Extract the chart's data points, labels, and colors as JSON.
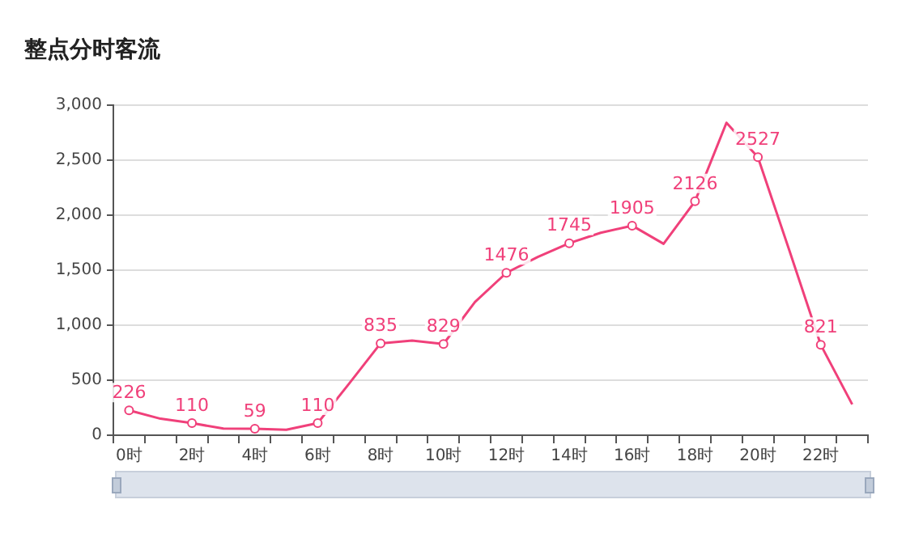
{
  "chart_data": {
    "type": "line",
    "title": "整点分时客流",
    "categories": [
      "0时",
      null,
      "2时",
      null,
      "4时",
      null,
      "6时",
      null,
      "8时",
      null,
      "10时",
      null,
      "12时",
      null,
      "14时",
      null,
      "16时",
      null,
      "18时",
      null,
      "20时",
      null,
      "22时",
      null
    ],
    "series": [
      {
        "color": "#f0407a",
        "values": [
          226,
          150,
          110,
          60,
          59,
          50,
          110,
          470,
          835,
          860,
          829,
          1210,
          1476,
          1620,
          1745,
          1840,
          1905,
          1740,
          2126,
          2840,
          2527,
          1680,
          821,
          280
        ],
        "value_labels": [
          "226",
          null,
          "110",
          null,
          "59",
          null,
          "110",
          null,
          "835",
          null,
          "829",
          null,
          "1476",
          null,
          "1745",
          null,
          "1905",
          null,
          "2126",
          null,
          "2527",
          null,
          "821",
          null
        ]
      }
    ],
    "ylim": [
      0,
      3000
    ],
    "yticks": [
      0,
      500,
      {
        "value": 1000,
        "label": "1,000"
      },
      {
        "value": 1500,
        "label": "1,500"
      },
      {
        "value": 2000,
        "label": "2,000"
      },
      {
        "value": 2500,
        "label": "2,500"
      },
      {
        "value": 3000,
        "label": "3,000"
      }
    ],
    "grid": "y",
    "legend": false,
    "marker": "circle",
    "line_style": "solid"
  }
}
